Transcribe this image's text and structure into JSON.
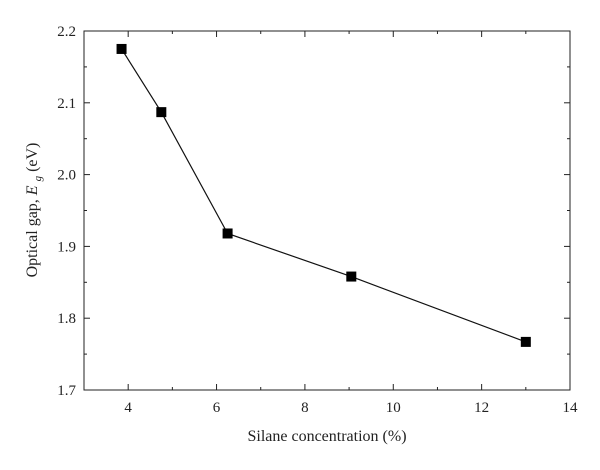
{
  "chart_data": {
    "type": "line",
    "title": "",
    "xlabel": "Silane concentration (%)",
    "ylabel": {
      "main": "Optical gap, ",
      "symbol": "E",
      "subscript": "g",
      "unit": " (eV)"
    },
    "xlim": [
      3,
      14
    ],
    "ylim": [
      1.7,
      2.2
    ],
    "xticks": [
      4,
      6,
      8,
      10,
      12,
      14
    ],
    "yticks": [
      1.7,
      1.8,
      1.9,
      2.0,
      2.1,
      2.2
    ],
    "xtick_labels": [
      "4",
      "6",
      "8",
      "10",
      "12",
      "14"
    ],
    "ytick_labels": [
      "1.7",
      "1.8",
      "1.9",
      "2.0",
      "2.1",
      "2.2"
    ],
    "grid": false,
    "legend": "none",
    "marker": "square",
    "colors": {
      "line": "#111111",
      "marker": "#000000",
      "axis": "#222222"
    },
    "series": [
      {
        "x": [
          3.85,
          4.75,
          6.25,
          9.05,
          13.0
        ],
        "y": [
          2.175,
          2.087,
          1.918,
          1.858,
          1.767
        ]
      }
    ]
  }
}
